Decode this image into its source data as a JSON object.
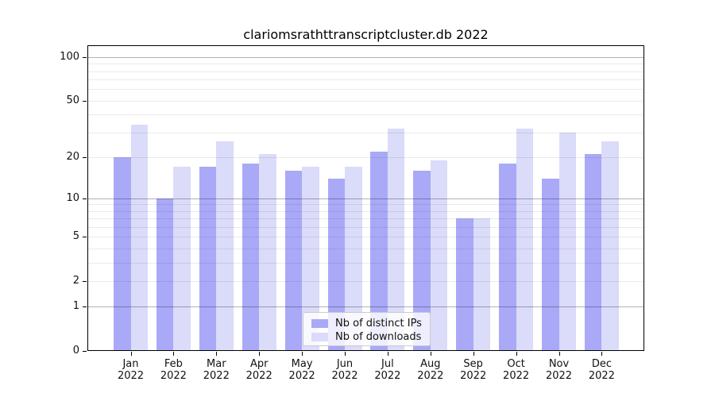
{
  "chart_data": {
    "type": "bar",
    "title": "clariomsrathttranscriptcluster.db 2022",
    "categories": [
      "Jan",
      "Feb",
      "Mar",
      "Apr",
      "May",
      "Jun",
      "Jul",
      "Aug",
      "Sep",
      "Oct",
      "Nov",
      "Dec"
    ],
    "category_year": "2022",
    "series": [
      {
        "name": "Nb of distinct IPs",
        "color": "#a9a9f8",
        "values": [
          20,
          10,
          17,
          18,
          16,
          14,
          22,
          16,
          7,
          18,
          14,
          21
        ]
      },
      {
        "name": "Nb of downloads",
        "color": "#dbdbfa",
        "values": [
          34,
          17,
          26,
          21,
          17,
          17,
          32,
          19,
          7,
          32,
          30,
          26
        ]
      }
    ],
    "y_axis": {
      "scale": "log1p",
      "tick_values": [
        0,
        1,
        2,
        5,
        10,
        20,
        50,
        100
      ],
      "major_gridlines": [
        1,
        10,
        100
      ],
      "minor_gridlines": [
        2,
        3,
        4,
        5,
        6,
        7,
        8,
        9,
        20,
        30,
        40,
        50,
        60,
        70,
        80,
        90
      ],
      "range": [
        0,
        120
      ]
    },
    "legend": {
      "position": "lower center"
    },
    "grid": true,
    "colors": {
      "spine": "#000000",
      "major_grid": "rgba(0,0,0,0.30)",
      "minor_grid": "rgba(0,0,0,0.08)",
      "text": "#111111"
    }
  }
}
